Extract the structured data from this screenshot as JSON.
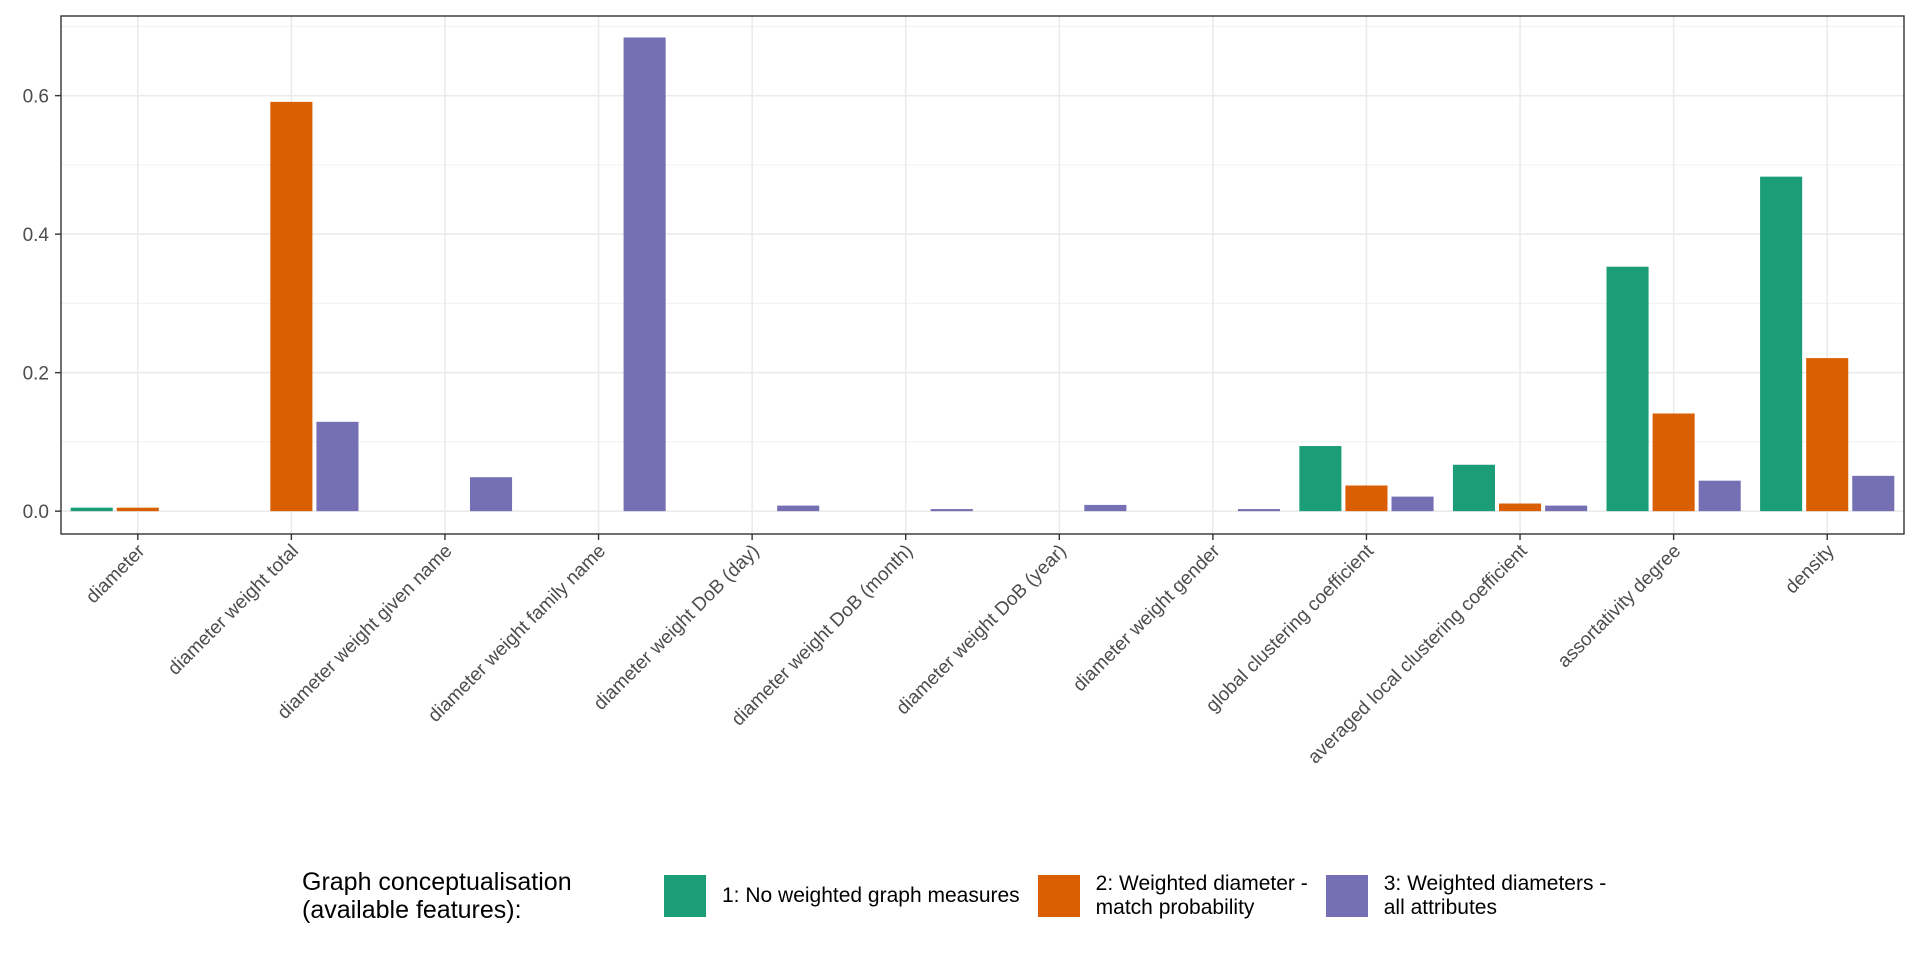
{
  "chart_data": {
    "type": "bar",
    "title": "",
    "xlabel": "",
    "ylabel": "",
    "ylim": [
      -0.033,
      0.715
    ],
    "yticks": [
      0.0,
      0.2,
      0.4,
      0.6
    ],
    "ytick_labels": [
      "0.0",
      "0.2",
      "0.4",
      "0.6"
    ],
    "grid": true,
    "legend_position": "bottom",
    "categories": [
      "diameter",
      "diameter weight total",
      "diameter weight given name",
      "diameter weight family name",
      "diameter weight DoB (day)",
      "diameter weight DoB (month)",
      "diameter weight DoB (year)",
      "diameter weight gender",
      "global clustering coefficient",
      "averaged local clustering coefficient",
      "assortativity degree",
      "density"
    ],
    "series": [
      {
        "name": "1: No weighted graph measures",
        "color": "#1b9e77",
        "values": [
          0.005,
          null,
          null,
          null,
          null,
          null,
          null,
          null,
          0.094,
          0.067,
          0.353,
          0.483
        ]
      },
      {
        "name": "2: Weighted diameter - match probability",
        "color": "#d95f02",
        "values": [
          0.005,
          0.591,
          null,
          null,
          null,
          null,
          null,
          null,
          0.037,
          0.011,
          0.141,
          0.221
        ]
      },
      {
        "name": "3: Weighted diameters - all attributes",
        "color": "#7570b3",
        "values": [
          null,
          0.129,
          0.049,
          0.684,
          0.008,
          0.003,
          0.009,
          0.003,
          0.021,
          0.008,
          0.044,
          0.051
        ]
      }
    ]
  },
  "legend": {
    "title": "Graph conceptualisation\n(available features):",
    "items": [
      {
        "label": "1: No weighted graph measures",
        "color": "#1b9e77"
      },
      {
        "label": "2: Weighted diameter -\nmatch probability",
        "color": "#d95f02"
      },
      {
        "label": "3: Weighted diameters -\nall attributes",
        "color": "#7570b3"
      }
    ]
  }
}
